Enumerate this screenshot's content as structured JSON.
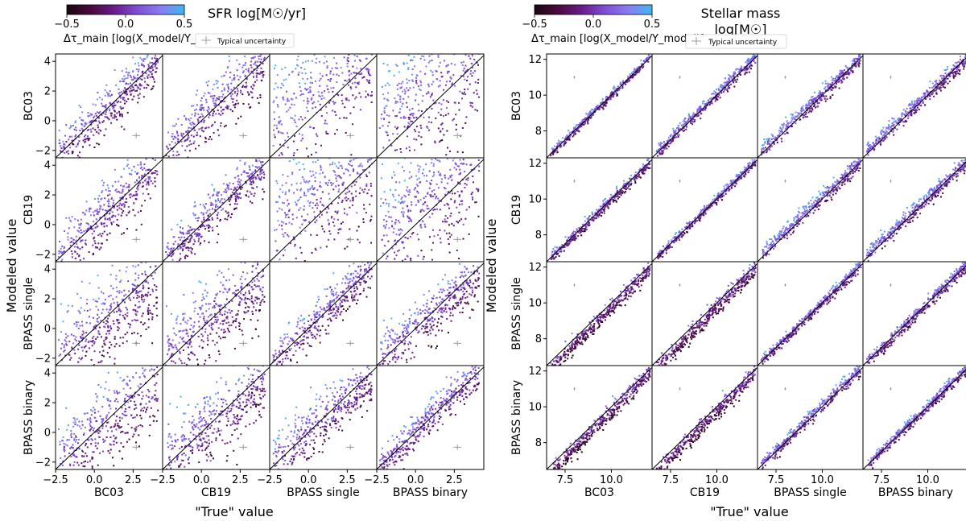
{
  "figure": {
    "colorbar": {
      "label": "Δτ_main [log(X_model/Y_model)]",
      "ticks": [
        "−0.5",
        "0.0",
        "0.5"
      ],
      "range": [
        -0.5,
        0.5
      ],
      "colormap": [
        "#1a0510",
        "#4a0a3c",
        "#6a1a8a",
        "#7f4fd6",
        "#8a7cf2",
        "#3fb8f0"
      ]
    },
    "legend_label": "Typical uncertainty",
    "uncertainty_color": "#999999",
    "row_labels": [
      "BC03",
      "CB19",
      "BPASS single",
      "BPASS binary"
    ],
    "col_labels": [
      "BC03",
      "CB19",
      "BPASS single",
      "BPASS binary"
    ],
    "ylabel": "Modeled value",
    "xlabel": "\"True\" value"
  },
  "chart_data": [
    {
      "type": "scatter",
      "title": "SFR log[M☉/yr]",
      "xlim": [
        -2.5,
        4.4
      ],
      "ylim": [
        -2.5,
        4.5
      ],
      "xticks": [
        -2.5,
        0.0,
        2.5
      ],
      "xtick_labels": [
        "−2.5",
        "0.0",
        "2.5"
      ],
      "yticks": [
        -2,
        0,
        2,
        4
      ],
      "ytick_labels": [
        "−2",
        "0",
        "2",
        "4"
      ],
      "true_range": [
        -2.3,
        4.1
      ],
      "one_to_one_line": true,
      "uncertainty_marker": {
        "x": 2.7,
        "y": -1.0,
        "xerr": 0.25,
        "yerr": 0.18
      },
      "panel_scatter": [
        [
          0.75,
          1.0,
          2.1,
          2.2
        ],
        [
          1.0,
          0.8,
          2.0,
          2.1
        ],
        [
          1.4,
          1.3,
          0.7,
          0.9
        ],
        [
          1.3,
          1.2,
          0.9,
          0.6
        ]
      ],
      "panel_offset": [
        [
          0.0,
          0.0,
          1.4,
          1.4
        ],
        [
          0.0,
          0.0,
          1.1,
          0.9
        ],
        [
          -0.3,
          -0.2,
          0.0,
          -0.1
        ],
        [
          -0.3,
          -0.2,
          -0.1,
          0.0
        ]
      ],
      "panel_slope": [
        [
          1.0,
          1.0,
          0.55,
          0.55
        ],
        [
          1.0,
          1.0,
          0.55,
          0.6
        ],
        [
          0.75,
          0.75,
          1.0,
          0.85
        ],
        [
          0.75,
          0.8,
          0.85,
          1.0
        ]
      ]
    },
    {
      "type": "scatter",
      "title": "Stellar mass log[M☉]",
      "title_lines": [
        "Stellar mass",
        "log[M☉]"
      ],
      "xlim": [
        6.5,
        12.2
      ],
      "ylim": [
        6.5,
        12.3
      ],
      "xticks": [
        7.5,
        10.0
      ],
      "xtick_labels": [
        "7.5",
        "10.0"
      ],
      "yticks": [
        8,
        10,
        12
      ],
      "ytick_labels": [
        "8",
        "10",
        "12"
      ],
      "true_range": [
        6.7,
        12.1
      ],
      "one_to_one_line": true,
      "uncertainty_marker": {
        "x": 8.0,
        "y": 11.0,
        "xerr": 0.05,
        "yerr": 0.08
      },
      "panel_scatter": [
        [
          0.12,
          0.18,
          0.22,
          0.22
        ],
        [
          0.15,
          0.12,
          0.22,
          0.22
        ],
        [
          0.22,
          0.22,
          0.15,
          0.18
        ],
        [
          0.22,
          0.22,
          0.18,
          0.15
        ]
      ],
      "panel_offset": [
        [
          0.0,
          0.05,
          0.1,
          0.05
        ],
        [
          -0.05,
          0.0,
          0.1,
          0.05
        ],
        [
          -0.3,
          -0.3,
          0.0,
          -0.05
        ],
        [
          -0.3,
          -0.3,
          0.05,
          0.0
        ]
      ],
      "panel_slope": [
        [
          1.0,
          1.0,
          0.95,
          0.95
        ],
        [
          1.0,
          1.0,
          0.95,
          0.95
        ],
        [
          1.05,
          1.05,
          1.0,
          1.0
        ],
        [
          1.05,
          1.05,
          1.0,
          1.0
        ]
      ]
    }
  ]
}
